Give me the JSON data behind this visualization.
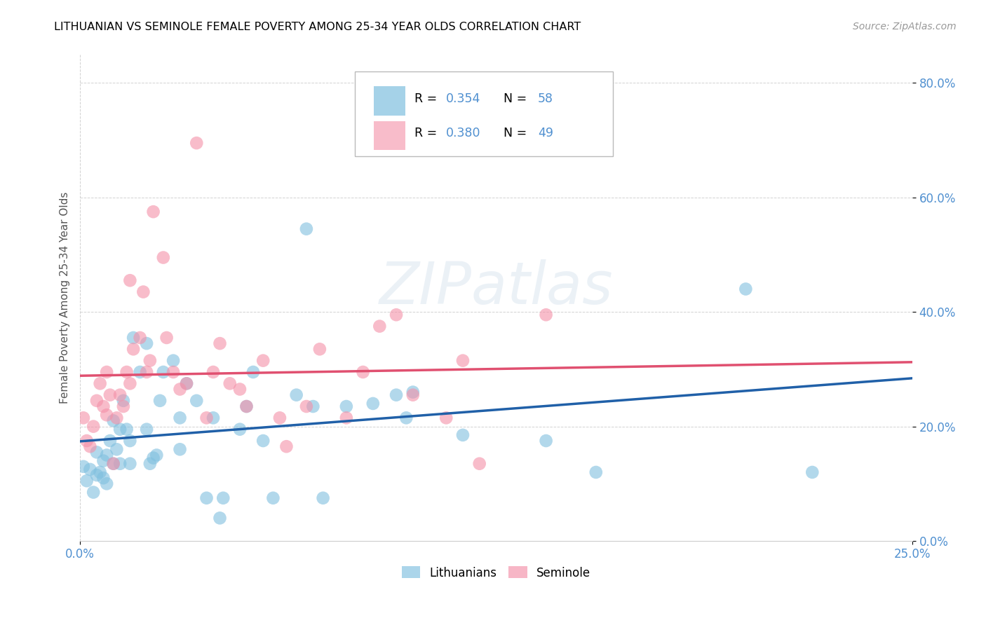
{
  "title": "LITHUANIAN VS SEMINOLE FEMALE POVERTY AMONG 25-34 YEAR OLDS CORRELATION CHART",
  "source": "Source: ZipAtlas.com",
  "ylabel": "Female Poverty Among 25-34 Year Olds",
  "xlim": [
    0,
    0.25
  ],
  "ylim": [
    0,
    0.85
  ],
  "xtick_vals": [
    0.0,
    0.25
  ],
  "xtick_labels": [
    "0.0%",
    "25.0%"
  ],
  "ytick_vals": [
    0.0,
    0.2,
    0.4,
    0.6,
    0.8
  ],
  "ytick_labels": [
    "0.0%",
    "20.0%",
    "40.0%",
    "60.0%",
    "80.0%"
  ],
  "watermark": "ZIPatlas",
  "blue_color": "#7fbfdf",
  "pink_color": "#f490a8",
  "blue_line_color": "#2060a8",
  "pink_line_color": "#e05070",
  "tick_color": "#5090d0",
  "blue_points": [
    [
      0.001,
      0.13
    ],
    [
      0.002,
      0.105
    ],
    [
      0.003,
      0.125
    ],
    [
      0.004,
      0.085
    ],
    [
      0.005,
      0.115
    ],
    [
      0.005,
      0.155
    ],
    [
      0.006,
      0.12
    ],
    [
      0.007,
      0.11
    ],
    [
      0.007,
      0.14
    ],
    [
      0.008,
      0.1
    ],
    [
      0.008,
      0.15
    ],
    [
      0.009,
      0.175
    ],
    [
      0.01,
      0.21
    ],
    [
      0.01,
      0.135
    ],
    [
      0.011,
      0.16
    ],
    [
      0.012,
      0.195
    ],
    [
      0.012,
      0.135
    ],
    [
      0.013,
      0.245
    ],
    [
      0.014,
      0.195
    ],
    [
      0.015,
      0.135
    ],
    [
      0.015,
      0.175
    ],
    [
      0.016,
      0.355
    ],
    [
      0.018,
      0.295
    ],
    [
      0.02,
      0.345
    ],
    [
      0.02,
      0.195
    ],
    [
      0.021,
      0.135
    ],
    [
      0.022,
      0.145
    ],
    [
      0.023,
      0.15
    ],
    [
      0.024,
      0.245
    ],
    [
      0.025,
      0.295
    ],
    [
      0.028,
      0.315
    ],
    [
      0.03,
      0.215
    ],
    [
      0.03,
      0.16
    ],
    [
      0.032,
      0.275
    ],
    [
      0.035,
      0.245
    ],
    [
      0.038,
      0.075
    ],
    [
      0.04,
      0.215
    ],
    [
      0.042,
      0.04
    ],
    [
      0.043,
      0.075
    ],
    [
      0.048,
      0.195
    ],
    [
      0.05,
      0.235
    ],
    [
      0.052,
      0.295
    ],
    [
      0.055,
      0.175
    ],
    [
      0.058,
      0.075
    ],
    [
      0.065,
      0.255
    ],
    [
      0.068,
      0.545
    ],
    [
      0.07,
      0.235
    ],
    [
      0.073,
      0.075
    ],
    [
      0.08,
      0.235
    ],
    [
      0.088,
      0.24
    ],
    [
      0.095,
      0.255
    ],
    [
      0.098,
      0.215
    ],
    [
      0.1,
      0.26
    ],
    [
      0.115,
      0.185
    ],
    [
      0.14,
      0.175
    ],
    [
      0.155,
      0.12
    ],
    [
      0.2,
      0.44
    ],
    [
      0.22,
      0.12
    ]
  ],
  "pink_points": [
    [
      0.001,
      0.215
    ],
    [
      0.002,
      0.175
    ],
    [
      0.003,
      0.165
    ],
    [
      0.004,
      0.2
    ],
    [
      0.005,
      0.245
    ],
    [
      0.006,
      0.275
    ],
    [
      0.007,
      0.235
    ],
    [
      0.008,
      0.295
    ],
    [
      0.008,
      0.22
    ],
    [
      0.009,
      0.255
    ],
    [
      0.01,
      0.135
    ],
    [
      0.011,
      0.215
    ],
    [
      0.012,
      0.255
    ],
    [
      0.013,
      0.235
    ],
    [
      0.014,
      0.295
    ],
    [
      0.015,
      0.275
    ],
    [
      0.015,
      0.455
    ],
    [
      0.016,
      0.335
    ],
    [
      0.018,
      0.355
    ],
    [
      0.019,
      0.435
    ],
    [
      0.02,
      0.295
    ],
    [
      0.021,
      0.315
    ],
    [
      0.022,
      0.575
    ],
    [
      0.025,
      0.495
    ],
    [
      0.026,
      0.355
    ],
    [
      0.028,
      0.295
    ],
    [
      0.03,
      0.265
    ],
    [
      0.032,
      0.275
    ],
    [
      0.035,
      0.695
    ],
    [
      0.038,
      0.215
    ],
    [
      0.04,
      0.295
    ],
    [
      0.042,
      0.345
    ],
    [
      0.045,
      0.275
    ],
    [
      0.048,
      0.265
    ],
    [
      0.05,
      0.235
    ],
    [
      0.055,
      0.315
    ],
    [
      0.06,
      0.215
    ],
    [
      0.062,
      0.165
    ],
    [
      0.068,
      0.235
    ],
    [
      0.072,
      0.335
    ],
    [
      0.08,
      0.215
    ],
    [
      0.085,
      0.295
    ],
    [
      0.09,
      0.375
    ],
    [
      0.095,
      0.395
    ],
    [
      0.1,
      0.255
    ],
    [
      0.11,
      0.215
    ],
    [
      0.115,
      0.315
    ],
    [
      0.12,
      0.135
    ],
    [
      0.14,
      0.395
    ]
  ]
}
